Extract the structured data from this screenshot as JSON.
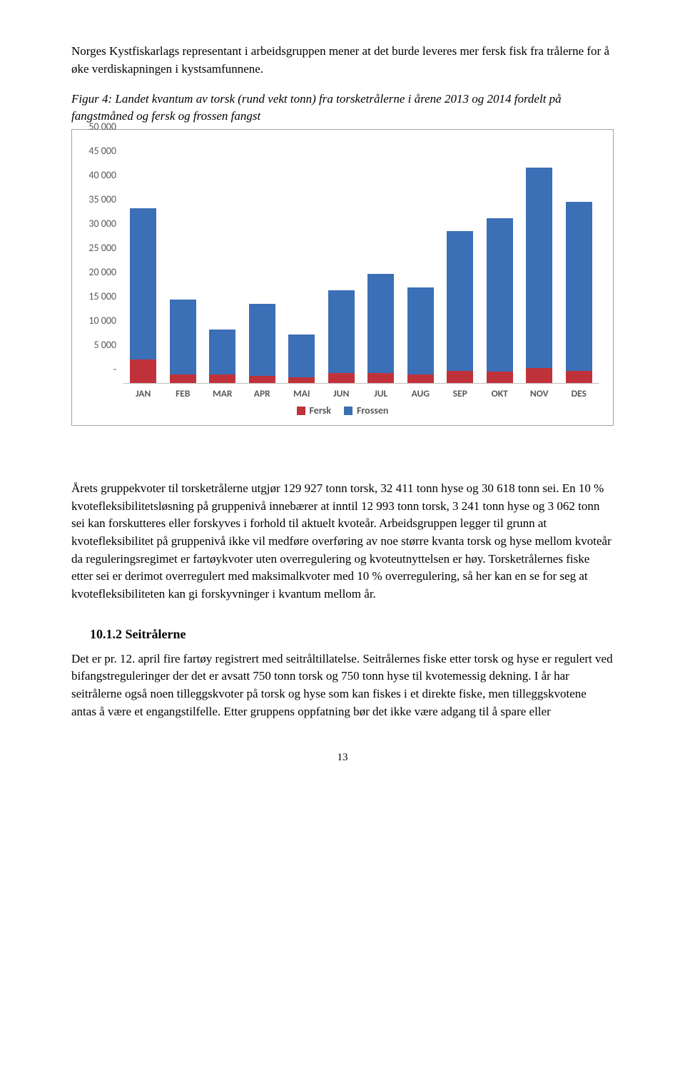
{
  "intro_para": "Norges Kystfiskarlags representant i arbeidsgruppen mener at det burde leveres mer fersk fisk fra trålerne for å øke verdiskapningen i kystsamfunnene.",
  "figure_caption": "Figur 4: Landet kvantum av torsk (rund vekt tonn) fra torsketrålerne i årene 2013 og 2014 fordelt på fangstmåned og fersk og frossen fangst",
  "chart": {
    "type": "stacked-bar",
    "months": [
      "JAN",
      "FEB",
      "MAR",
      "APR",
      "MAI",
      "JUN",
      "JUL",
      "AUG",
      "SEP",
      "OKT",
      "NOV",
      "DES"
    ],
    "fersk": [
      4800,
      1800,
      1700,
      1500,
      1200,
      2000,
      2100,
      1700,
      2500,
      2400,
      3100,
      2500
    ],
    "frossen": [
      31300,
      15400,
      9300,
      14800,
      8800,
      17200,
      20400,
      18100,
      28900,
      31600,
      41500,
      34900
    ],
    "y_ticks": [
      "-",
      "5 000",
      "10 000",
      "15 000",
      "20 000",
      "25 000",
      "30 000",
      "35 000",
      "40 000",
      "45 000",
      "50 000"
    ],
    "y_max": 50000,
    "colors": {
      "fersk": "#c0323a",
      "frossen": "#3b6fb6"
    },
    "legend": {
      "fersk": "Fersk",
      "frossen": "Frossen"
    },
    "axis_text_color": "#595959",
    "border_color": "#a0a0a0",
    "baseline_color": "#bfbfbf",
    "label_fontsize": 14,
    "bar_width_pct": 66
  },
  "body_para": "Årets gruppekvoter til torsketrålerne utgjør 129 927 tonn torsk, 32 411 tonn hyse og 30 618 tonn sei. En 10 % kvotefleksibilitetsløsning på gruppenivå innebærer at inntil 12 993 tonn torsk, 3 241 tonn hyse og 3 062 tonn sei kan forskutteres eller forskyves i forhold til aktuelt kvoteår. Arbeidsgruppen legger til grunn at kvotefleksibilitet på gruppenivå ikke vil medføre overføring av noe større kvanta torsk og hyse mellom kvoteår da reguleringsregimet er fartøykvoter uten overregulering og kvoteutnyttelsen er høy. Torsketrålernes fiske etter sei er derimot overregulert med maksimalkvoter med 10 % overregulering, så her kan en se for seg at kvotefleksibiliteten kan gi forskyvninger i kvantum mellom år.",
  "section": {
    "number": "10.1.2",
    "title": "Seitrålerne"
  },
  "section_para": "Det er pr. 12. april fire fartøy registrert med seitråltillatelse. Seitrålernes fiske etter torsk og hyse er regulert ved bifangstreguleringer der det er avsatt 750 tonn torsk og 750 tonn hyse til kvotemessig dekning. I år har seitrålerne også noen tilleggskvoter på torsk og hyse som kan fiskes i et direkte fiske, men tilleggskvotene antas å være et engangstilfelle. Etter gruppens oppfatning bør det ikke være adgang til å spare eller",
  "page_number": "13"
}
